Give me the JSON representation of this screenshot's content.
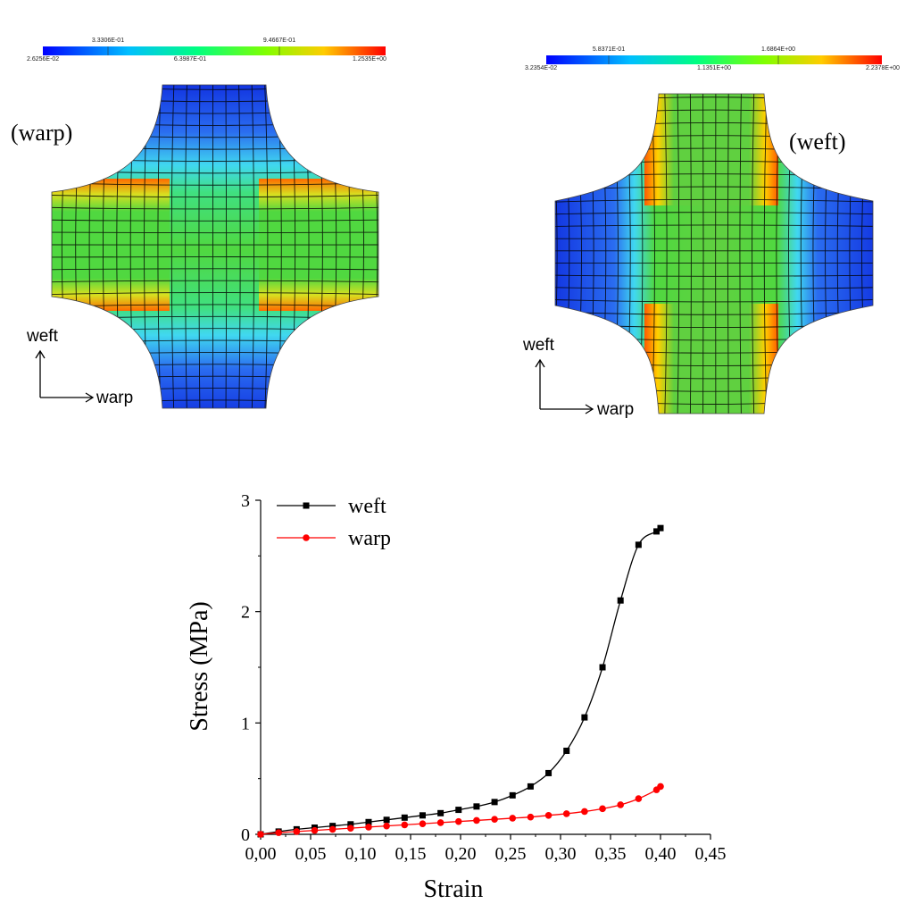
{
  "panels": {
    "warp": {
      "title": "(warp)",
      "colorbar_top_labels": [
        "3.3306E-01",
        "9.4667E-01"
      ],
      "colorbar_bottom_labels": [
        "2.6256E-02",
        "6.3987E-01",
        "1.2535E+00"
      ],
      "axis_up": "weft",
      "axis_right": "warp"
    },
    "weft": {
      "title": "(weft)",
      "colorbar_top_labels": [
        "5.8371E-01",
        "1.6864E+00"
      ],
      "colorbar_bottom_labels": [
        "3.2354E-02",
        "1.1351E+00",
        "2.2378E+00"
      ],
      "axis_up": "weft",
      "axis_right": "warp"
    }
  },
  "colors": {
    "weft_series": "#000000",
    "warp_series": "#ff0000"
  },
  "chart_data": {
    "type": "line",
    "title": "",
    "xlabel": "Strain",
    "ylabel": "Stress (MPa)",
    "xlim": [
      0,
      0.45
    ],
    "ylim": [
      0,
      3
    ],
    "x_ticks": [
      "0,00",
      "0,05",
      "0,10",
      "0,15",
      "0,20",
      "0,25",
      "0,30",
      "0,35",
      "0,40",
      "0,45"
    ],
    "y_ticks": [
      "0",
      "1",
      "2",
      "3"
    ],
    "legend_position": "top-left",
    "series": [
      {
        "name": "weft",
        "marker": "square",
        "color": "#000000",
        "x": [
          0,
          0.018,
          0.036,
          0.054,
          0.072,
          0.09,
          0.108,
          0.126,
          0.144,
          0.162,
          0.18,
          0.198,
          0.216,
          0.234,
          0.252,
          0.27,
          0.288,
          0.306,
          0.324,
          0.342,
          0.36,
          0.378,
          0.396,
          0.4
        ],
        "y": [
          0.0,
          0.025,
          0.045,
          0.06,
          0.075,
          0.09,
          0.11,
          0.13,
          0.15,
          0.17,
          0.19,
          0.22,
          0.25,
          0.29,
          0.35,
          0.43,
          0.55,
          0.75,
          1.05,
          1.5,
          2.1,
          2.6,
          2.72,
          2.75
        ]
      },
      {
        "name": "warp",
        "marker": "circle",
        "color": "#ff0000",
        "x": [
          0,
          0.018,
          0.036,
          0.054,
          0.072,
          0.09,
          0.108,
          0.126,
          0.144,
          0.162,
          0.18,
          0.198,
          0.216,
          0.234,
          0.252,
          0.27,
          0.288,
          0.306,
          0.324,
          0.342,
          0.36,
          0.378,
          0.396,
          0.4
        ],
        "y": [
          0.0,
          0.015,
          0.025,
          0.035,
          0.045,
          0.055,
          0.065,
          0.075,
          0.085,
          0.095,
          0.105,
          0.115,
          0.125,
          0.135,
          0.145,
          0.155,
          0.17,
          0.185,
          0.205,
          0.23,
          0.265,
          0.32,
          0.4,
          0.43
        ]
      }
    ]
  }
}
